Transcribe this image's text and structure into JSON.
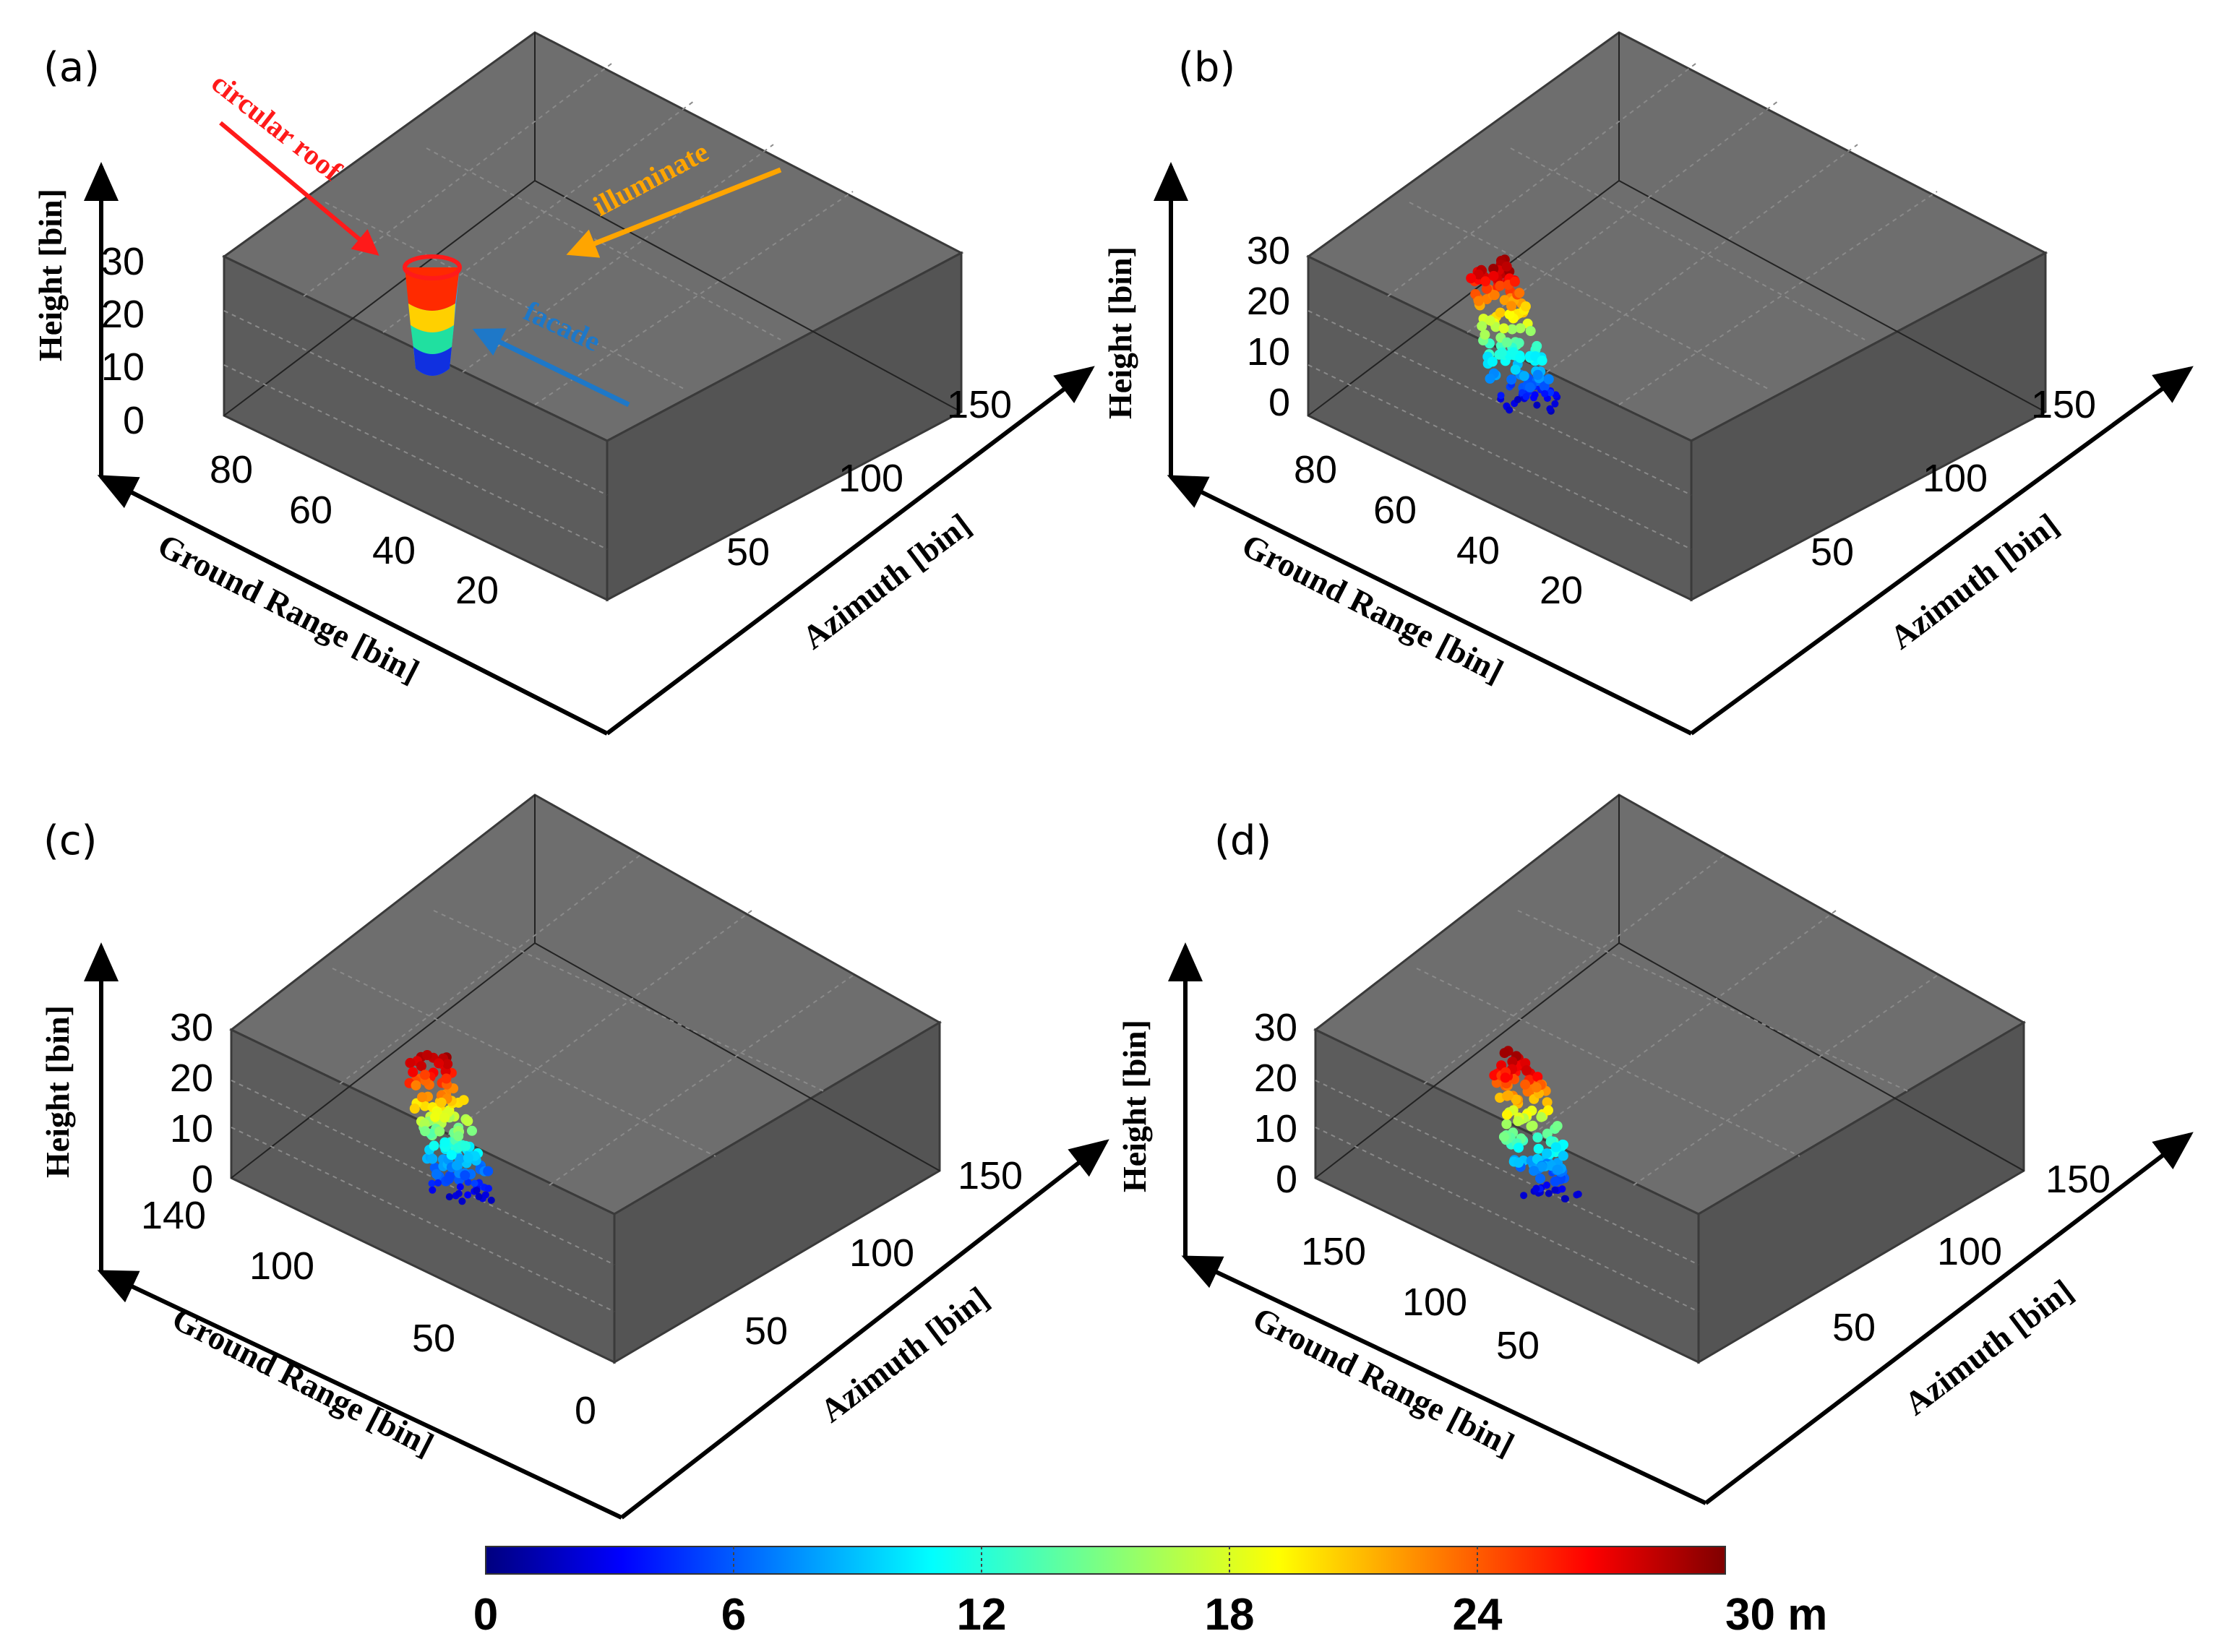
{
  "chart_data": [
    {
      "panel": "(a)",
      "type": "scatter",
      "title": "",
      "xlabel": "Ground Range [bin]",
      "ylabel": "Azimuth [bin]",
      "zlabel": "Height [bin]",
      "ground_range_ticks": [
        "80",
        "60",
        "40",
        "20"
      ],
      "azimuth_ticks": [
        "150",
        "100",
        "50"
      ],
      "height_ticks": [
        "30",
        "20",
        "10",
        "0"
      ],
      "annotations": [
        {
          "text": "circular roof",
          "color": "#ff1a1a"
        },
        {
          "text": "illuminate",
          "color": "#ffa500"
        },
        {
          "text": "facade",
          "color": "#1e78c8"
        }
      ],
      "series": [
        {
          "name": "simulated building",
          "height_range_m": [
            0,
            30
          ]
        }
      ]
    },
    {
      "panel": "(b)",
      "type": "scatter",
      "title": "",
      "xlabel": "Ground Range [bin]",
      "ylabel": "Azimuth [bin]",
      "zlabel": "Height [bin]",
      "ground_range_ticks": [
        "80",
        "60",
        "40",
        "20"
      ],
      "azimuth_ticks": [
        "150",
        "100",
        "50"
      ],
      "height_ticks": [
        "30",
        "20",
        "10",
        "0"
      ],
      "series": [
        {
          "name": "reconstructed point cloud",
          "height_range_m": [
            0,
            30
          ]
        }
      ]
    },
    {
      "panel": "(c)",
      "type": "scatter",
      "title": "",
      "xlabel": "Ground Range [bin]",
      "ylabel": "Azimuth [bin]",
      "zlabel": "Height [bin]",
      "ground_range_ticks": [
        "140",
        "100",
        "50",
        "0"
      ],
      "azimuth_ticks": [
        "150",
        "100",
        "50"
      ],
      "height_ticks": [
        "30",
        "20",
        "10",
        "0"
      ],
      "series": [
        {
          "name": "reconstructed point cloud",
          "height_range_m": [
            0,
            30
          ]
        }
      ]
    },
    {
      "panel": "(d)",
      "type": "scatter",
      "title": "",
      "xlabel": "Ground Range [bin]",
      "ylabel": "Azimuth [bin]",
      "zlabel": "Height [bin]",
      "ground_range_ticks": [
        "150",
        "100",
        "50"
      ],
      "azimuth_ticks": [
        "150",
        "100",
        "50"
      ],
      "height_ticks": [
        "30",
        "20",
        "10",
        "0"
      ],
      "series": [
        {
          "name": "reconstructed point cloud",
          "height_range_m": [
            0,
            30
          ]
        }
      ]
    }
  ],
  "colorbar": {
    "ticks": [
      "0",
      "6",
      "12",
      "18",
      "24",
      "30 m"
    ],
    "range": [
      0,
      30
    ],
    "colormap": "jet"
  },
  "colors": {
    "box_face": "#6e6e6e",
    "box_edge": "#3a3a3a",
    "axis_arrow": "#000000"
  }
}
